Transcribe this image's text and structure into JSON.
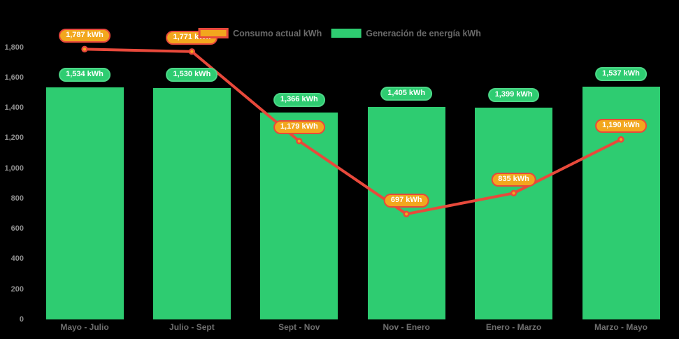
{
  "colors": {
    "background": "#000000",
    "bar_green": "#2ecc71",
    "badge_green_border": "#4cd787",
    "line_red": "#e8493b",
    "marker_orange": "#f2a71e",
    "badge_text": "#ffffff",
    "y_axis_text": "#8f8f8f",
    "x_axis_text": "#6f6f6f",
    "legend_text": "#6a6a6a"
  },
  "chart_data": {
    "type": "combo-bar-line",
    "title": "",
    "categories": [
      "Mayo - Julio",
      "Julio - Sept",
      "Sept - Nov",
      "Nov - Enero",
      "Enero - Marzo",
      "Marzo - Mayo"
    ],
    "series": [
      {
        "name": "Consumo actual kWh",
        "type": "line",
        "color": "#e8493b",
        "marker_color": "#f2a71e",
        "values": [
          1787,
          1771,
          1179,
          697,
          835,
          1190
        ],
        "point_labels": [
          "1,787 kWh",
          "1,771 kWh",
          "1,179 kWh",
          "697 kWh",
          "835 kWh",
          "1,190 kWh"
        ]
      },
      {
        "name": "Generación de energía kWh",
        "type": "bar",
        "color": "#2ecc71",
        "values": [
          1534,
          1530,
          1366,
          1405,
          1399,
          1537
        ],
        "point_labels": [
          "1,534 kWh",
          "1,530 kWh",
          "1,366 kWh",
          "1,405 kWh",
          "1,399 kWh",
          "1,537 kWh"
        ]
      }
    ],
    "y_axis": {
      "min": 0,
      "max": 1800,
      "tick_step": 200,
      "tick_labels": [
        "0",
        "200",
        "400",
        "600",
        "800",
        "1,000",
        "1,200",
        "1,400",
        "1,600",
        "1,800"
      ]
    },
    "legend_position": "top-center",
    "grid": false
  }
}
